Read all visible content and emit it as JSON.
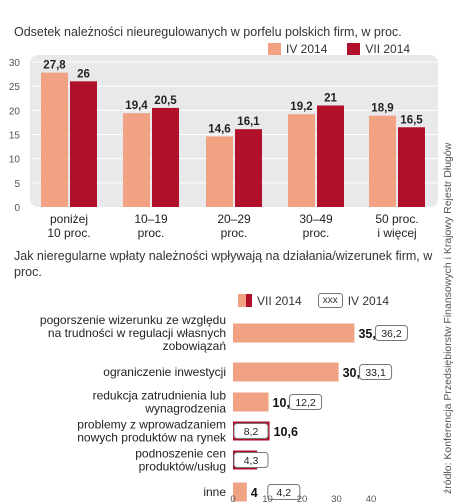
{
  "chart_data": [
    {
      "type": "bar",
      "title": "Odsetek należności nieuregulowanych w porfelu polskich firm, w proc.",
      "categories": [
        "poniżej\n10 proc.",
        "10–19\nproc.",
        "20–29\nproc.",
        "30–49\nproc.",
        "50 proc.\ni więcej"
      ],
      "series": [
        {
          "name": "IV 2014",
          "values": [
            27.8,
            19.4,
            14.6,
            19.2,
            18.9
          ],
          "labels": [
            "27,8",
            "19,4",
            "14,6",
            "19,2",
            "18,9"
          ],
          "color": "#f0a283"
        },
        {
          "name": "VII 2014",
          "values": [
            26,
            20.5,
            16.1,
            21,
            16.5
          ],
          "labels": [
            "26",
            "20,5",
            "16,1",
            "21",
            "16,5"
          ],
          "color": "#b0102a"
        }
      ],
      "yticks": [
        "30",
        "25",
        "20",
        "15",
        "10",
        "5",
        "0"
      ],
      "ylim": [
        0,
        30
      ],
      "grid": true,
      "legend": "top-right"
    },
    {
      "type": "bar",
      "orientation": "horizontal",
      "title": "Jak nieregularne wpłaty należności wpływają na działania/wizerunek firm, w proc.",
      "legend_box_text": "xxx",
      "categories": [
        [
          "pogorszenie wizerunku ze względu",
          "na trudności w regulacji własnych",
          "zobowiązań"
        ],
        [
          "ograniczenie inwestycji"
        ],
        [
          "redukcja zatrudnienia lub",
          "wynagrodzenia"
        ],
        [
          "problemy z wprowadzaniem",
          "nowych produktów na rynek"
        ],
        [
          "podnoszenie cen",
          "produktów/usług"
        ],
        [
          "inne"
        ]
      ],
      "series": [
        {
          "name": "VII 2014",
          "values": [
            35.2,
            30.6,
            10.3,
            10.6,
            7,
            4
          ],
          "labels": [
            "35,2",
            "30,6",
            "10,3",
            "10,6",
            "7",
            "4"
          ],
          "color_lead": "#b0102a",
          "color_lag": "#f0a283"
        },
        {
          "name": "IV 2014",
          "values": [
            36.2,
            33.1,
            12.2,
            8.2,
            4.3,
            4.2
          ],
          "labels": [
            "36,2",
            "33,1",
            "12,2",
            "8,2",
            "4,3",
            "4,2"
          ]
        }
      ],
      "xticks": [
        "0",
        "10",
        "20",
        "30",
        "40"
      ],
      "xlim": [
        0,
        40
      ]
    }
  ],
  "source": "źródło: Konferencja Przedsiębiorstw Finansowych i Krajowy Rejestr Długów"
}
